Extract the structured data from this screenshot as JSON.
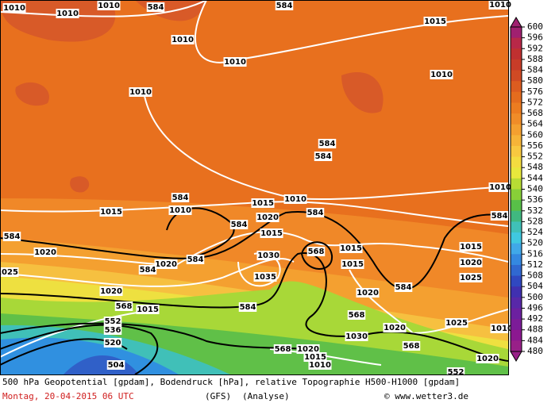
{
  "map": {
    "footer": {
      "line1": "500 hPa Geopotential [gpdam], Bodendruck [hPa], relative Topographie H500-H1000 [gpdam]",
      "date": "Montag, 20-04-2015  06 UTC",
      "model": "(GFS)",
      "run": "(Analyse)",
      "credit": "© www.wetter3.de"
    },
    "colorbar": {
      "ticks": [
        600,
        596,
        592,
        588,
        584,
        580,
        576,
        572,
        568,
        564,
        560,
        556,
        552,
        548,
        544,
        540,
        536,
        532,
        528,
        524,
        520,
        516,
        512,
        508,
        504,
        500,
        496,
        492,
        488,
        484,
        480
      ],
      "colors": [
        "#a02070",
        "#b82848",
        "#c03030",
        "#c83c28",
        "#d04a24",
        "#dc5c20",
        "#e46c1e",
        "#ec7c20",
        "#f08c28",
        "#f4a030",
        "#f6b438",
        "#f8c840",
        "#f4dc40",
        "#e8e83c",
        "#b8dc34",
        "#88d038",
        "#58c048",
        "#40b880",
        "#40c0b8",
        "#40c8e0",
        "#40a8e8",
        "#3488e0",
        "#3068d0",
        "#3048c0",
        "#4030b0",
        "#5828a8",
        "#6c20a0",
        "#7c1c98",
        "#8c1890",
        "#982088"
      ]
    },
    "contour_labels": [
      "584",
      "584",
      "1010",
      "1010",
      "1010",
      "1010",
      "1010",
      "1010",
      "1015",
      "1010",
      "1010",
      "584",
      "584",
      "1010",
      "584",
      "1010",
      "1015",
      "1015",
      "584",
      "1020",
      "584",
      "1015",
      "584",
      "1010",
      "584",
      "1020",
      "1020",
      "584",
      "584",
      "1030",
      "568",
      "1015",
      "1015",
      "1015",
      "1020",
      "1025",
      "1025",
      "1035",
      "1020",
      "584",
      "1020",
      "584",
      "568",
      "1015",
      "1025",
      "1020",
      "552",
      "536",
      "520",
      "568",
      "1030",
      "568",
      "568",
      "1020",
      "1015",
      "1010",
      "504",
      "552",
      "1020",
      "1010"
    ]
  }
}
